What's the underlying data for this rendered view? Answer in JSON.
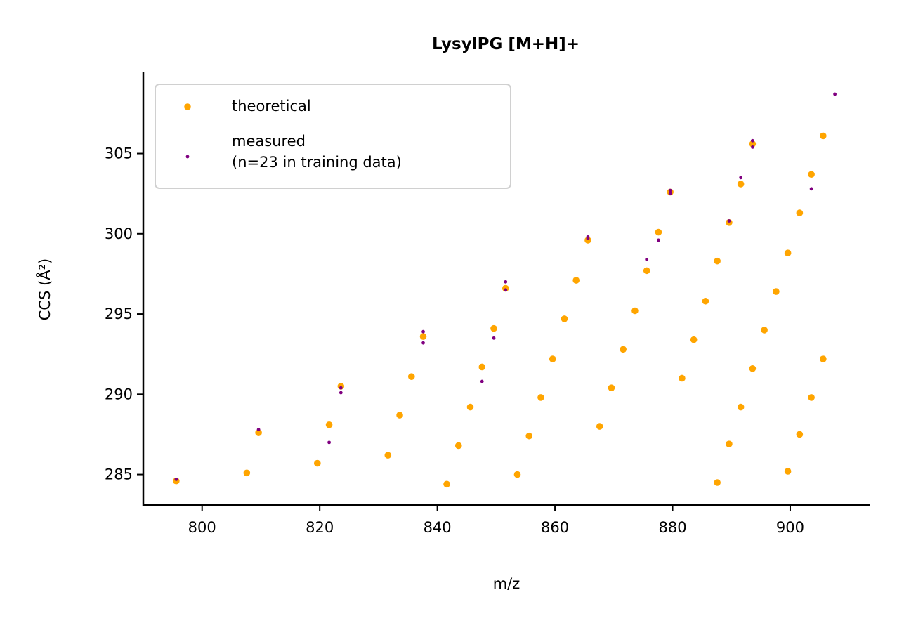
{
  "chart_data": {
    "type": "scatter",
    "title": "LysylPG [M+H]+",
    "xlabel": "m/z",
    "ylabel": "CCS (Å²)",
    "xlim": [
      790,
      913.5
    ],
    "ylim": [
      283.1,
      310.1
    ],
    "xticks": [
      800,
      820,
      840,
      860,
      880,
      900
    ],
    "yticks": [
      285,
      290,
      295,
      300,
      305
    ],
    "grid": false,
    "legend_position": "top-left",
    "series": [
      {
        "name": "theoretical",
        "color": "#FFA500",
        "points": [
          [
            795.6,
            284.6
          ],
          [
            807.6,
            285.1
          ],
          [
            809.6,
            287.6
          ],
          [
            819.6,
            285.7
          ],
          [
            821.6,
            288.1
          ],
          [
            823.6,
            290.5
          ],
          [
            831.6,
            286.2
          ],
          [
            833.6,
            288.7
          ],
          [
            835.6,
            291.1
          ],
          [
            837.6,
            293.6
          ],
          [
            841.6,
            284.4
          ],
          [
            843.6,
            286.8
          ],
          [
            845.6,
            289.2
          ],
          [
            847.6,
            291.7
          ],
          [
            849.6,
            294.1
          ],
          [
            851.6,
            296.6
          ],
          [
            853.6,
            285.0
          ],
          [
            855.6,
            287.4
          ],
          [
            857.6,
            289.8
          ],
          [
            859.6,
            292.2
          ],
          [
            861.6,
            294.7
          ],
          [
            863.6,
            297.1
          ],
          [
            865.6,
            299.6
          ],
          [
            867.6,
            288.0
          ],
          [
            869.6,
            290.4
          ],
          [
            871.6,
            292.8
          ],
          [
            873.6,
            295.2
          ],
          [
            875.6,
            297.7
          ],
          [
            877.6,
            300.1
          ],
          [
            879.6,
            302.6
          ],
          [
            881.6,
            291.0
          ],
          [
            883.6,
            293.4
          ],
          [
            885.6,
            295.8
          ],
          [
            887.6,
            298.3
          ],
          [
            889.6,
            300.7
          ],
          [
            891.6,
            303.1
          ],
          [
            893.6,
            305.6
          ],
          [
            887.6,
            284.5
          ],
          [
            889.6,
            286.9
          ],
          [
            891.6,
            289.2
          ],
          [
            893.6,
            291.6
          ],
          [
            895.6,
            294.0
          ],
          [
            897.6,
            296.4
          ],
          [
            899.6,
            298.8
          ],
          [
            901.6,
            301.3
          ],
          [
            903.6,
            303.7
          ],
          [
            905.6,
            306.1
          ],
          [
            899.6,
            285.2
          ],
          [
            901.6,
            287.5
          ],
          [
            903.6,
            289.8
          ],
          [
            905.6,
            292.2
          ]
        ]
      },
      {
        "name": "measured\n(n=23 in training data)",
        "color": "#800080",
        "points": [
          [
            795.6,
            284.7
          ],
          [
            809.6,
            287.8
          ],
          [
            821.6,
            287.0
          ],
          [
            823.6,
            290.1
          ],
          [
            823.6,
            290.4
          ],
          [
            837.6,
            293.2
          ],
          [
            837.6,
            293.9
          ],
          [
            847.6,
            290.8
          ],
          [
            849.6,
            293.5
          ],
          [
            851.6,
            296.5
          ],
          [
            851.6,
            297.0
          ],
          [
            865.6,
            299.7
          ],
          [
            865.6,
            299.8
          ],
          [
            875.6,
            298.4
          ],
          [
            877.6,
            299.6
          ],
          [
            879.6,
            302.5
          ],
          [
            879.6,
            302.7
          ],
          [
            889.6,
            300.8
          ],
          [
            891.6,
            303.5
          ],
          [
            893.6,
            305.4
          ],
          [
            893.6,
            305.8
          ],
          [
            903.6,
            302.8
          ],
          [
            907.6,
            308.7
          ]
        ]
      }
    ]
  }
}
